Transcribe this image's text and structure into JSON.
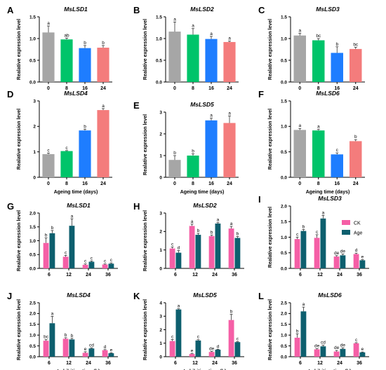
{
  "colors": {
    "bar_0": "#a6a6a6",
    "bar_8": "#00c46a",
    "bar_16": "#1e7dff",
    "bar_24": "#f47c7c",
    "ck": "#f55fa6",
    "age": "#0d5f6e"
  },
  "legend": {
    "labels": [
      "CK",
      "Age"
    ]
  },
  "chart_data": [
    {
      "panel": "A",
      "type": "bar",
      "title": "MsLSD1",
      "ylabel": "Realative expression level",
      "xlabel": "",
      "categories": [
        "0",
        "8",
        "16",
        "24"
      ],
      "values": [
        1.14,
        0.98,
        0.78,
        0.79
      ],
      "errors": [
        0.15,
        0.03,
        0.06,
        0.05
      ],
      "letters": [
        "a",
        "ab",
        "b",
        "b"
      ],
      "ylim": [
        0,
        1.5
      ],
      "yticks": [
        0,
        0.5,
        1.0,
        1.5
      ],
      "ytick_labels": [
        "0.0",
        "0.5",
        "1.0",
        "1.5"
      ]
    },
    {
      "panel": "B",
      "type": "bar",
      "title": "MsLSD2",
      "ylabel": "Realative expression level",
      "xlabel": "",
      "categories": [
        "0",
        "8",
        "16",
        "24"
      ],
      "values": [
        1.16,
        1.09,
        0.99,
        0.92
      ],
      "errors": [
        0.22,
        0.14,
        0.06,
        0.02
      ],
      "letters": [
        "a",
        "a",
        "a",
        "a"
      ],
      "ylim": [
        0,
        1.5
      ],
      "yticks": [
        0,
        0.5,
        1.0,
        1.5
      ],
      "ytick_labels": [
        "0.0",
        "0.5",
        "1.0",
        "1.5"
      ]
    },
    {
      "panel": "C",
      "type": "bar",
      "title": "MsLSD3",
      "ylabel": "Realative expression level",
      "xlabel": "",
      "categories": [
        "0",
        "8",
        "16",
        "24"
      ],
      "values": [
        1.07,
        0.96,
        0.67,
        0.76
      ],
      "errors": [
        0.05,
        0.04,
        0.14,
        0.04
      ],
      "letters": [
        "a",
        "bc",
        "b",
        "bc"
      ],
      "ylim": [
        0,
        1.5
      ],
      "yticks": [
        0,
        0.5,
        1.0,
        1.5
      ],
      "ytick_labels": [
        "0.0",
        "0.5",
        "1.0",
        "1.5"
      ]
    },
    {
      "panel": "D",
      "type": "bar",
      "title": "MsLSD4",
      "ylabel": "Realative expression level",
      "xlabel": "Ageing time (days)",
      "categories": [
        "0",
        "8",
        "16",
        "24"
      ],
      "values": [
        0.91,
        1.03,
        1.84,
        2.64
      ],
      "errors": [
        0.04,
        0.02,
        0.05,
        0.06
      ],
      "letters": [
        "c",
        "c",
        "b",
        "a"
      ],
      "ylim": [
        0,
        3
      ],
      "yticks": [
        0,
        1,
        2,
        3
      ],
      "ytick_labels": [
        "0",
        "1",
        "2",
        "3"
      ]
    },
    {
      "panel": "E",
      "type": "bar",
      "title": "MsLSD5",
      "ylabel": "Realative expression level",
      "xlabel": "Ageing time (days)",
      "categories": [
        "0",
        "8",
        "16",
        "24"
      ],
      "values": [
        0.8,
        1.0,
        2.62,
        2.5
      ],
      "errors": [
        0.2,
        0.08,
        0.1,
        0.32
      ],
      "letters": [
        "b",
        "b",
        "a",
        "a"
      ],
      "ylim": [
        0,
        3
      ],
      "yticks": [
        0,
        1,
        2,
        3
      ],
      "ytick_labels": [
        "0",
        "1",
        "2",
        "3"
      ]
    },
    {
      "panel": "F",
      "type": "bar",
      "title": "MsLSD6",
      "ylabel": "Realative expression level",
      "xlabel": "Ageing time (days)",
      "categories": [
        "0",
        "8",
        "16",
        "24"
      ],
      "values": [
        0.93,
        0.92,
        0.45,
        0.71
      ],
      "errors": [
        0.03,
        0.02,
        0.03,
        0.03
      ],
      "letters": [
        "a",
        "a",
        "c",
        "b"
      ],
      "ylim": [
        0,
        1.5
      ],
      "yticks": [
        0,
        0.5,
        1.0,
        1.5
      ],
      "ytick_labels": [
        "0.0",
        "0.5",
        "1.0",
        "1.5"
      ]
    },
    {
      "panel": "G",
      "type": "bar",
      "title": "MsLSD1",
      "ylabel": "Realative expression level",
      "xlabel": "",
      "categories": [
        "6",
        "12",
        "24",
        "36"
      ],
      "series": [
        {
          "values": [
            0.92,
            0.42,
            0.13,
            0.14
          ],
          "errors": [
            0.18,
            0.05,
            0.03,
            0.02
          ],
          "letters": [
            "b",
            "c",
            "c",
            "c"
          ]
        },
        {
          "values": [
            1.27,
            1.54,
            0.24,
            0.17
          ],
          "errors": [
            0.1,
            0.25,
            0.03,
            0.03
          ],
          "letters": [
            "b",
            "a",
            "c",
            "c"
          ]
        }
      ],
      "ylim": [
        0,
        2.0
      ],
      "yticks": [
        0,
        0.5,
        1.0,
        1.5,
        2.0
      ],
      "ytick_labels": [
        "0.0",
        "0.5",
        "1.0",
        "1.5",
        "2.0"
      ]
    },
    {
      "panel": "H",
      "type": "bar",
      "title": "MsLSD2",
      "ylabel": "Realative expression level",
      "xlabel": "",
      "categories": [
        "6",
        "12",
        "24",
        "36"
      ],
      "series": [
        {
          "values": [
            1.08,
            2.3,
            1.75,
            2.16
          ],
          "errors": [
            0.08,
            0.1,
            0.05,
            0.12
          ],
          "letters": [
            "c",
            "a",
            "b",
            "a"
          ]
        },
        {
          "values": [
            0.85,
            1.82,
            2.43,
            1.65
          ],
          "errors": [
            0.12,
            0.08,
            0.05,
            0.08
          ],
          "letters": [
            "d",
            "b",
            "a",
            "b"
          ]
        }
      ],
      "ylim": [
        0,
        3
      ],
      "yticks": [
        0,
        1,
        2,
        3
      ],
      "ytick_labels": [
        "0",
        "1",
        "2",
        "3"
      ]
    },
    {
      "panel": "I",
      "type": "bar",
      "title": "MsLSD3",
      "ylabel": "Realative expression level",
      "xlabel": "",
      "categories": [
        "6",
        "12",
        "24",
        "36"
      ],
      "series": [
        {
          "values": [
            0.94,
            0.98,
            0.38,
            0.46
          ],
          "errors": [
            0.06,
            0.1,
            0.03,
            0.03
          ],
          "letters": [
            "c",
            "c",
            "de",
            "d"
          ]
        },
        {
          "values": [
            1.2,
            1.6,
            0.42,
            0.26
          ],
          "errors": [
            0.05,
            0.1,
            0.04,
            0.02
          ],
          "letters": [
            "b",
            "a",
            "de",
            "e"
          ]
        }
      ],
      "ylim": [
        0,
        2.0
      ],
      "yticks": [
        0,
        0.5,
        1.0,
        1.5,
        2.0
      ],
      "ytick_labels": [
        "0.0",
        "0.5",
        "1.0",
        "1.5",
        "2.0"
      ]
    },
    {
      "panel": "J",
      "type": "bar",
      "title": "MsLSD4",
      "ylabel": "Realative expression level",
      "xlabel": "Imbibition time (h)",
      "categories": [
        "6",
        "12",
        "24",
        "36"
      ],
      "series": [
        {
          "values": [
            0.74,
            0.83,
            0.18,
            0.3
          ],
          "errors": [
            0.05,
            0.05,
            0.05,
            0.03
          ],
          "letters": [
            "bc",
            "b",
            "e",
            "d"
          ]
        },
        {
          "values": [
            1.55,
            0.8,
            0.38,
            0.16
          ],
          "errors": [
            0.32,
            0.05,
            0.03,
            0.02
          ],
          "letters": [
            "a",
            "b",
            "cd",
            "e"
          ]
        }
      ],
      "ylim": [
        0,
        2.5
      ],
      "yticks": [
        0,
        0.5,
        1.0,
        1.5,
        2.0,
        2.5
      ],
      "ytick_labels": [
        "0.0",
        "0.5",
        "1.0",
        "1.5",
        "2.0",
        "2.5"
      ]
    },
    {
      "panel": "K",
      "type": "bar",
      "title": "MsLSD5",
      "ylabel": "Realative expression level",
      "xlabel": "Imbibition time (h)",
      "categories": [
        "6",
        "12",
        "24",
        "36"
      ],
      "series": [
        {
          "values": [
            1.16,
            0.2,
            0.35,
            2.72
          ],
          "errors": [
            0.12,
            0.03,
            0.05,
            0.42
          ],
          "letters": [
            "c",
            "e",
            "de",
            "b"
          ]
        },
        {
          "values": [
            3.5,
            1.2,
            0.52,
            1.08
          ],
          "errors": [
            0.05,
            0.06,
            0.03,
            0.04
          ],
          "letters": [
            "a",
            "c",
            "d",
            "c"
          ]
        }
      ],
      "ylim": [
        0,
        4
      ],
      "yticks": [
        0,
        1,
        2,
        3,
        4
      ],
      "ytick_labels": [
        "0",
        "1",
        "2",
        "3",
        "4"
      ]
    },
    {
      "panel": "L",
      "type": "bar",
      "title": "MsLSD6",
      "ylabel": "Realative expression level",
      "xlabel": "Imbibition time (h)",
      "categories": [
        "6",
        "12",
        "24",
        "36"
      ],
      "series": [
        {
          "values": [
            0.88,
            0.34,
            0.24,
            0.62
          ],
          "errors": [
            0.18,
            0.03,
            0.05,
            0.03
          ],
          "letters": [
            "b",
            "de",
            "de",
            "c"
          ]
        },
        {
          "values": [
            2.1,
            0.48,
            0.36,
            0.2
          ],
          "errors": [
            0.2,
            0.05,
            0.05,
            0.02
          ],
          "letters": [
            "a",
            "cd",
            "de",
            "e"
          ]
        }
      ],
      "ylim": [
        0,
        2.5
      ],
      "yticks": [
        0,
        0.5,
        1.0,
        1.5,
        2.0,
        2.5
      ],
      "ytick_labels": [
        "0.0",
        "0.5",
        "1.0",
        "1.5",
        "2.0",
        "2.5"
      ]
    }
  ]
}
